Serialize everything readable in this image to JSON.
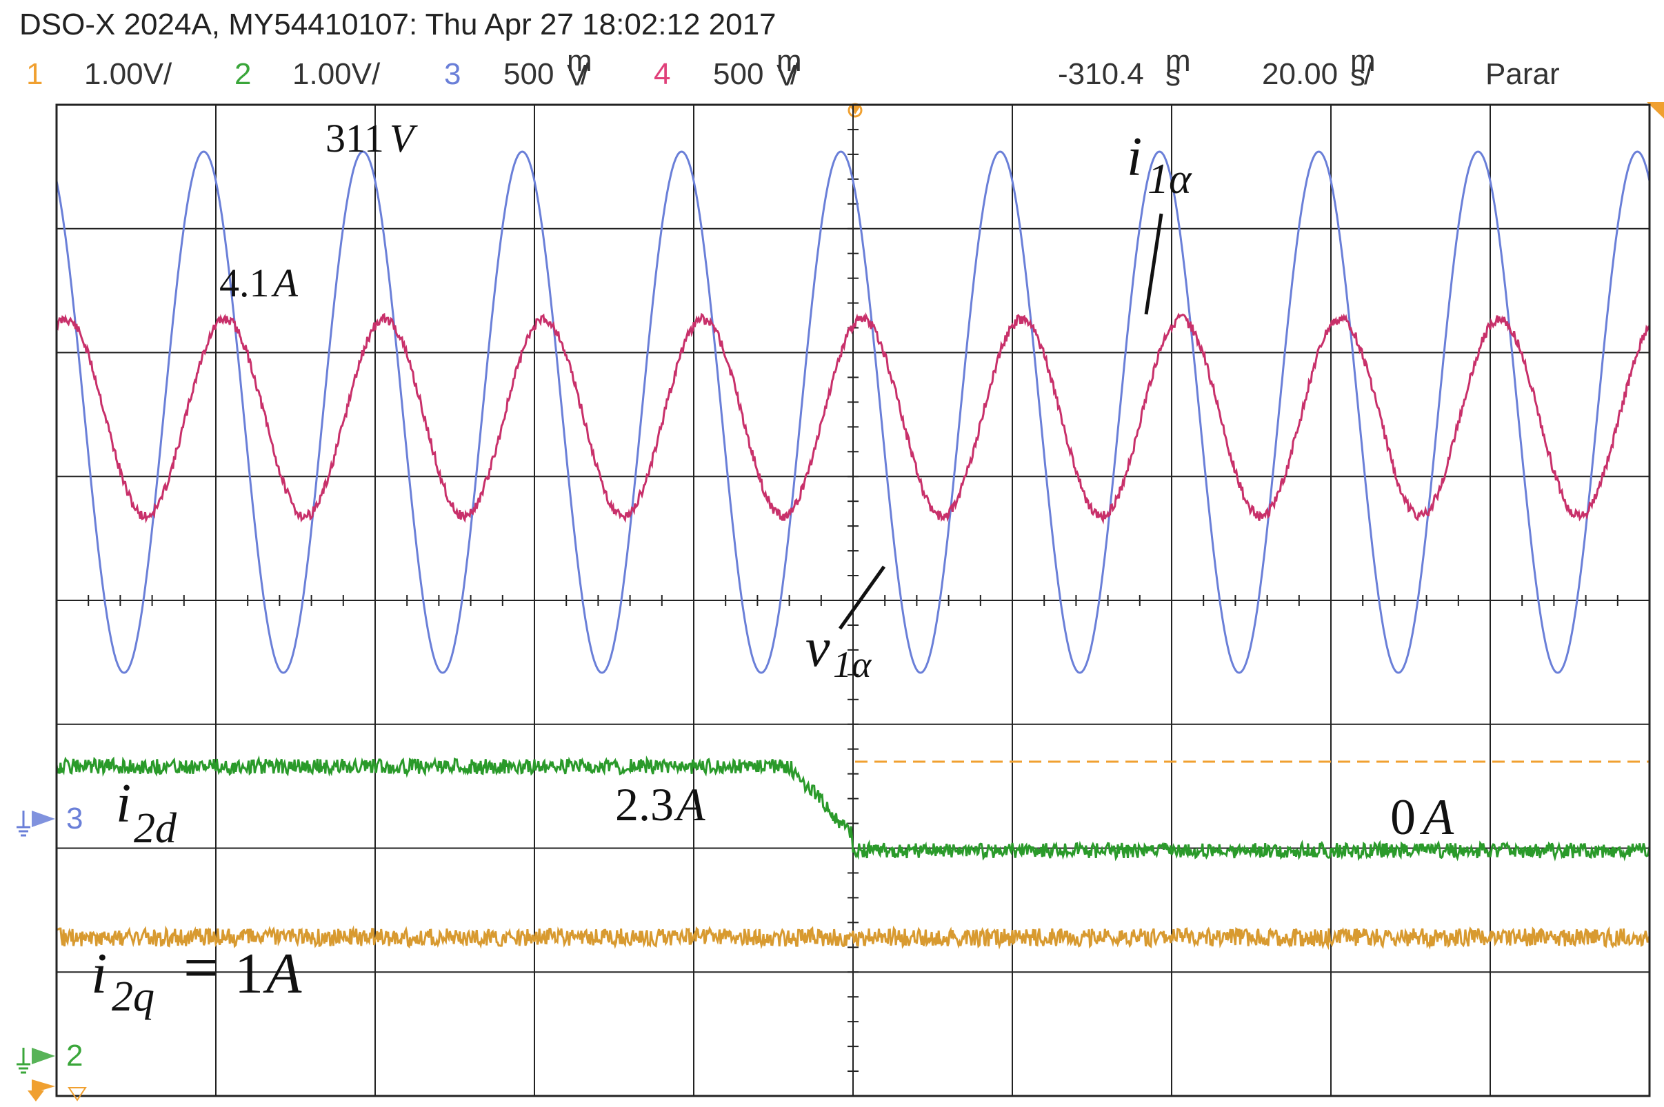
{
  "header": {
    "title": "DSO-X 2024A, MY54410107: Thu Apr 27 18:02:12 2017",
    "channels": [
      {
        "num": "1",
        "scale": "1.00V/",
        "color": "#f0a030"
      },
      {
        "num": "2",
        "scale": "1.00V/",
        "color": "#3aa63a"
      },
      {
        "num": "3",
        "scale": "500",
        "unit_top": "m",
        "unit_bottom": "V",
        "suffix": "/",
        "color": "#6a7fd8"
      },
      {
        "num": "4",
        "scale": "500",
        "unit_top": "m",
        "unit_bottom": "V",
        "suffix": "/",
        "color": "#e0407a"
      }
    ],
    "delay": "-310.4",
    "delay_unit_top": "m",
    "delay_unit_bottom": "s",
    "timebase": "20.00",
    "timebase_unit_top": "m",
    "timebase_unit_bottom": "s",
    "timebase_suffix": "/",
    "run_state": "Parar"
  },
  "markers": {
    "ch3_label": "3",
    "ch2_label": "2",
    "ch3_color": "#6a7fd8",
    "ch2_color": "#3aa63a",
    "ref_color": "#f0a030"
  },
  "annotations": {
    "v_peak": {
      "num": "311",
      "unit": "V"
    },
    "i_peak": {
      "num": "4.1",
      "unit": "A"
    },
    "i1a": {
      "main": "i",
      "sub": "1α"
    },
    "v1a": {
      "main": "v",
      "sub": "1α"
    },
    "i2d": {
      "main": "i",
      "sub": "2d"
    },
    "i2d_high": {
      "num": "2.3",
      "unit": "A"
    },
    "i2d_low": {
      "num": "0",
      "unit": "A"
    },
    "i2q": {
      "main": "i",
      "sub": "2q",
      "eq": "=",
      "num": "1",
      "unit": "A"
    }
  },
  "chart_data": {
    "type": "line",
    "x_unit": "ms",
    "x_range": [
      -410.4,
      -210.4
    ],
    "series": [
      {
        "name": "v1α",
        "kind": "sine",
        "peak": 311,
        "peak_unit": "V",
        "frequency_hz": 50,
        "color": "#6a7fd8"
      },
      {
        "name": "i1α",
        "kind": "sine",
        "peak": 4.1,
        "peak_unit": "A",
        "frequency_hz": 50,
        "color": "#c8306a"
      },
      {
        "name": "i2d",
        "kind": "step",
        "before": 2.3,
        "after": 0,
        "unit": "A",
        "ramp_start_ms": -318.4,
        "step_ms": -310.4,
        "color": "#2a9a2a"
      },
      {
        "name": "i2q",
        "kind": "constant",
        "value": 1,
        "unit": "A",
        "color": "#d89a30"
      }
    ],
    "grid": true
  }
}
